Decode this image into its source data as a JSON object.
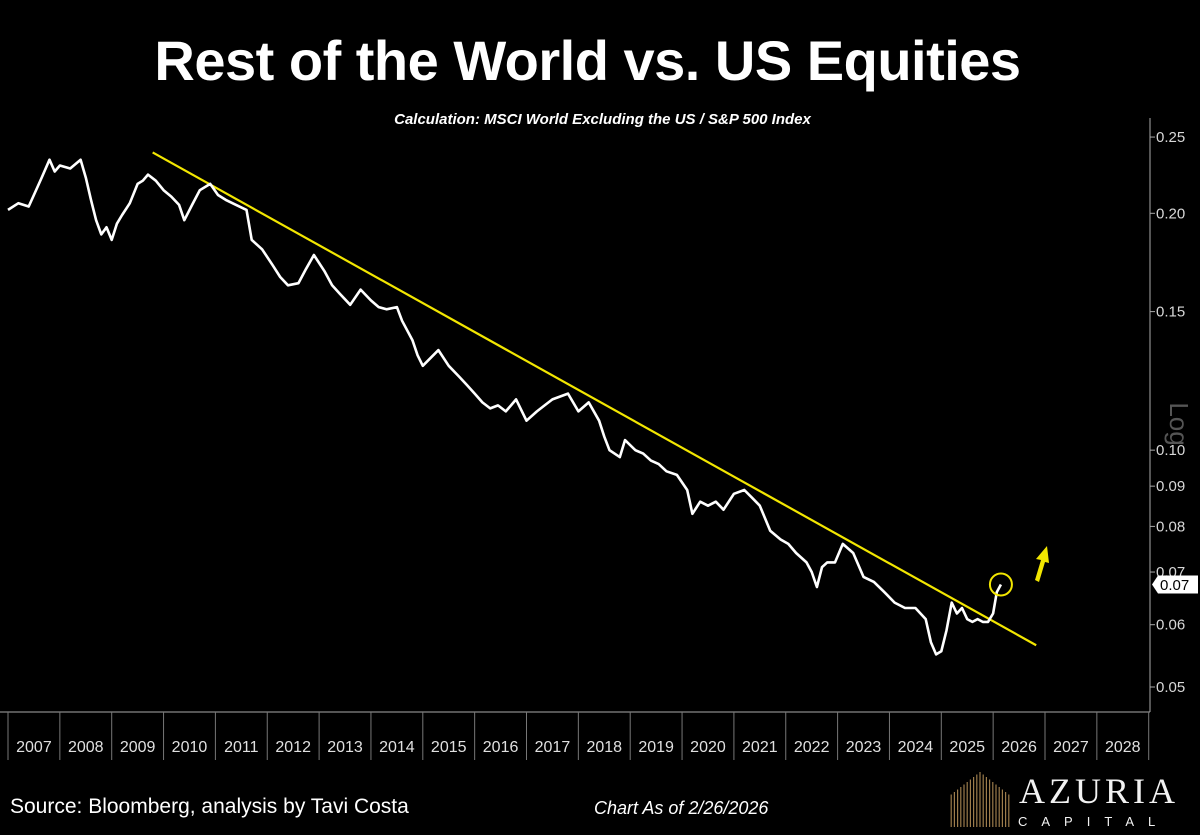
{
  "chart_data": {
    "type": "line",
    "title": "Rest of the World vs. US Equities",
    "subtitle": "Calculation: MSCI World Excluding the US  / S&P 500 Index",
    "y_scale": "log",
    "y_scale_label": "Log",
    "ylim": [
      0.047,
      0.26
    ],
    "y_ticks": [
      "0.25",
      "0.20",
      "0.15",
      "0.10",
      "0.09",
      "0.08",
      "0.07",
      "0.06",
      "0.05"
    ],
    "x_ticks": [
      "2007",
      "2008",
      "2009",
      "2010",
      "2011",
      "2012",
      "2013",
      "2014",
      "2015",
      "2016",
      "2017",
      "2018",
      "2019",
      "2020",
      "2021",
      "2022",
      "2023",
      "2024",
      "2025",
      "2026",
      "2027",
      "2028"
    ],
    "xlim": [
      2007,
      2029
    ],
    "grid": false,
    "last_value_label": "0.07",
    "series": [
      {
        "color": "#ffffff",
        "points": [
          [
            2007.0,
            0.202
          ],
          [
            2007.2,
            0.206
          ],
          [
            2007.4,
            0.204
          ],
          [
            2007.5,
            0.211
          ],
          [
            2007.65,
            0.222
          ],
          [
            2007.8,
            0.234
          ],
          [
            2007.9,
            0.226
          ],
          [
            2008.0,
            0.23
          ],
          [
            2008.2,
            0.228
          ],
          [
            2008.4,
            0.234
          ],
          [
            2008.5,
            0.222
          ],
          [
            2008.6,
            0.208
          ],
          [
            2008.7,
            0.196
          ],
          [
            2008.8,
            0.188
          ],
          [
            2008.9,
            0.192
          ],
          [
            2009.0,
            0.185
          ],
          [
            2009.1,
            0.194
          ],
          [
            2009.2,
            0.199
          ],
          [
            2009.35,
            0.206
          ],
          [
            2009.5,
            0.218
          ],
          [
            2009.6,
            0.22
          ],
          [
            2009.7,
            0.224
          ],
          [
            2009.85,
            0.22
          ],
          [
            2010.0,
            0.214
          ],
          [
            2010.15,
            0.21
          ],
          [
            2010.3,
            0.205
          ],
          [
            2010.4,
            0.196
          ],
          [
            2010.55,
            0.205
          ],
          [
            2010.7,
            0.214
          ],
          [
            2010.9,
            0.218
          ],
          [
            2011.05,
            0.211
          ],
          [
            2011.2,
            0.208
          ],
          [
            2011.4,
            0.205
          ],
          [
            2011.6,
            0.202
          ],
          [
            2011.7,
            0.185
          ],
          [
            2011.9,
            0.18
          ],
          [
            2012.1,
            0.172
          ],
          [
            2012.25,
            0.166
          ],
          [
            2012.4,
            0.162
          ],
          [
            2012.6,
            0.163
          ],
          [
            2012.75,
            0.17
          ],
          [
            2012.9,
            0.177
          ],
          [
            2013.1,
            0.169
          ],
          [
            2013.25,
            0.162
          ],
          [
            2013.4,
            0.158
          ],
          [
            2013.6,
            0.153
          ],
          [
            2013.8,
            0.16
          ],
          [
            2014.0,
            0.155
          ],
          [
            2014.15,
            0.152
          ],
          [
            2014.3,
            0.151
          ],
          [
            2014.5,
            0.152
          ],
          [
            2014.6,
            0.146
          ],
          [
            2014.8,
            0.138
          ],
          [
            2014.9,
            0.132
          ],
          [
            2015.0,
            0.128
          ],
          [
            2015.15,
            0.131
          ],
          [
            2015.3,
            0.134
          ],
          [
            2015.5,
            0.128
          ],
          [
            2015.7,
            0.124
          ],
          [
            2015.85,
            0.121
          ],
          [
            2016.0,
            0.118
          ],
          [
            2016.15,
            0.115
          ],
          [
            2016.3,
            0.113
          ],
          [
            2016.45,
            0.114
          ],
          [
            2016.6,
            0.112
          ],
          [
            2016.8,
            0.116
          ],
          [
            2017.0,
            0.109
          ],
          [
            2017.2,
            0.112
          ],
          [
            2017.35,
            0.114
          ],
          [
            2017.5,
            0.116
          ],
          [
            2017.65,
            0.117
          ],
          [
            2017.8,
            0.118
          ],
          [
            2018.0,
            0.112
          ],
          [
            2018.2,
            0.115
          ],
          [
            2018.4,
            0.109
          ],
          [
            2018.5,
            0.104
          ],
          [
            2018.6,
            0.1
          ],
          [
            2018.8,
            0.098
          ],
          [
            2018.9,
            0.103
          ],
          [
            2019.1,
            0.1
          ],
          [
            2019.25,
            0.099
          ],
          [
            2019.4,
            0.097
          ],
          [
            2019.55,
            0.096
          ],
          [
            2019.7,
            0.094
          ],
          [
            2019.9,
            0.093
          ],
          [
            2020.1,
            0.089
          ],
          [
            2020.2,
            0.083
          ],
          [
            2020.35,
            0.086
          ],
          [
            2020.5,
            0.085
          ],
          [
            2020.65,
            0.086
          ],
          [
            2020.8,
            0.084
          ],
          [
            2021.0,
            0.088
          ],
          [
            2021.2,
            0.089
          ],
          [
            2021.35,
            0.087
          ],
          [
            2021.5,
            0.085
          ],
          [
            2021.7,
            0.079
          ],
          [
            2021.9,
            0.077
          ],
          [
            2022.05,
            0.076
          ],
          [
            2022.2,
            0.074
          ],
          [
            2022.4,
            0.072
          ],
          [
            2022.5,
            0.07
          ],
          [
            2022.6,
            0.067
          ],
          [
            2022.7,
            0.071
          ],
          [
            2022.8,
            0.072
          ],
          [
            2022.95,
            0.072
          ],
          [
            2023.1,
            0.076
          ],
          [
            2023.3,
            0.074
          ],
          [
            2023.5,
            0.069
          ],
          [
            2023.7,
            0.068
          ],
          [
            2023.9,
            0.066
          ],
          [
            2024.1,
            0.064
          ],
          [
            2024.3,
            0.063
          ],
          [
            2024.5,
            0.063
          ],
          [
            2024.7,
            0.061
          ],
          [
            2024.8,
            0.057
          ],
          [
            2024.9,
            0.055
          ],
          [
            2025.0,
            0.0555
          ],
          [
            2025.1,
            0.059
          ],
          [
            2025.2,
            0.064
          ],
          [
            2025.3,
            0.062
          ],
          [
            2025.4,
            0.063
          ],
          [
            2025.5,
            0.061
          ],
          [
            2025.6,
            0.0605
          ],
          [
            2025.7,
            0.061
          ],
          [
            2025.8,
            0.0605
          ],
          [
            2025.9,
            0.0605
          ],
          [
            2026.0,
            0.062
          ],
          [
            2026.07,
            0.066
          ],
          [
            2026.15,
            0.0675
          ]
        ]
      }
    ],
    "trendline": {
      "color": "#f2e600",
      "from": [
        2009.79,
        0.239
      ],
      "to": [
        2026.83,
        0.0565
      ]
    },
    "annotations": {
      "circle_at": [
        2026.15,
        0.0675
      ],
      "arrow": "up",
      "color": "#f2e600"
    }
  },
  "footer": {
    "source": "Source: Bloomberg, analysis by Tavi Costa",
    "as_of": "Chart As of 2/26/2026",
    "logo_name": "AZURIA",
    "logo_sub": "CAPITAL"
  }
}
